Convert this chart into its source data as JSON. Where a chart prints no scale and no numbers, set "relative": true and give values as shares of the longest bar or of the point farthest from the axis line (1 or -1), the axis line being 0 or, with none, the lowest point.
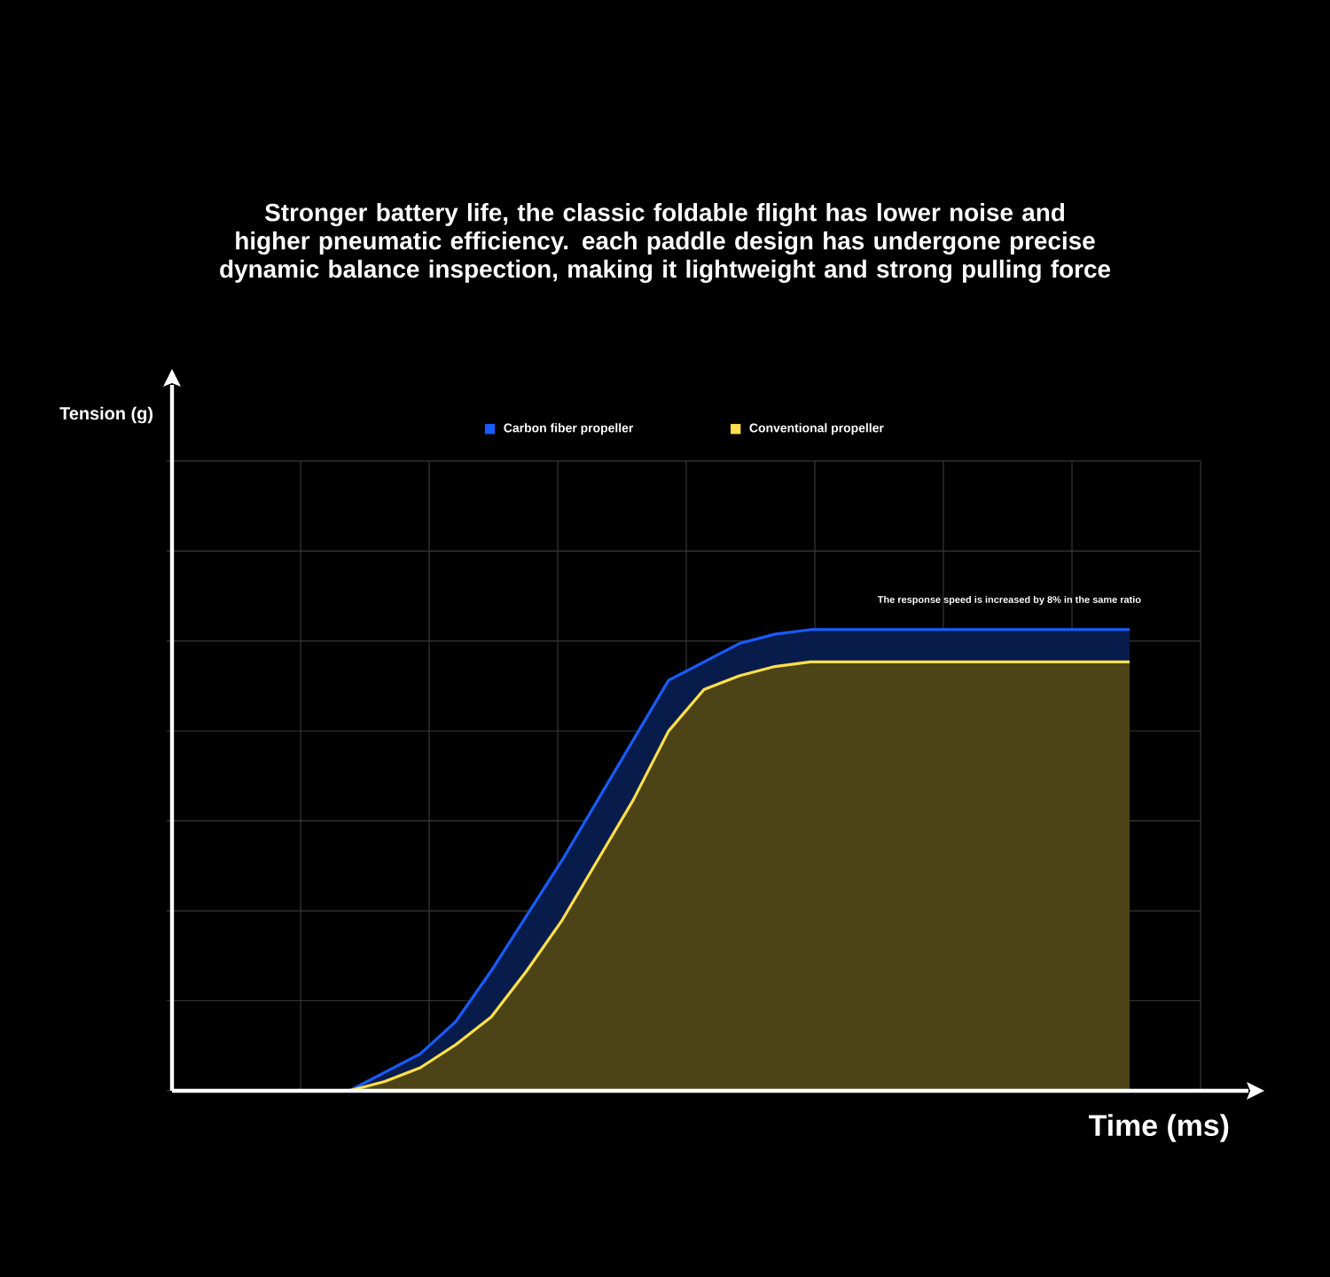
{
  "chart_data": {
    "type": "area",
    "title": "Stronger battery life, the classic foldable flight has lower noise and higher pneumatic efficiency. each paddle design has undergone precise dynamic balance inspection, making it lightweight and strong pulling force",
    "xlabel": "Time (ms)",
    "relative": true,
    "grid": true,
    "legend": "top",
    "annotations": [
      "The response speed is increased by 8% in the same ratio",
      "Tension (g)"
    ],
    "categories": [
      null,
      null,
      null,
      null,
      null,
      null,
      null,
      null,
      null,
      null,
      null,
      null,
      null,
      null,
      null,
      null,
      null,
      null,
      null,
      null,
      null,
      null,
      null,
      null,
      null,
      null,
      null,
      null,
      null,
      null
    ],
    "series": [
      {
        "name": "Carbon fiber propeller",
        "color": "#1a5cff",
        "values": [
          null,
          null,
          null,
          null,
          null,
          0,
          0.04,
          0.08,
          0.15,
          0.26,
          0.38,
          0.5,
          0.63,
          0.76,
          0.89,
          0.93,
          0.97,
          0.99,
          1,
          1,
          1,
          1,
          1,
          1,
          1,
          1,
          1,
          1,
          null,
          null
        ]
      },
      {
        "name": "Conventional propeller",
        "color": "#ffe04a",
        "values": [
          null,
          null,
          null,
          null,
          null,
          0,
          0.02,
          0.05,
          0.1,
          0.16,
          0.26,
          0.37,
          0.5,
          0.63,
          0.78,
          0.87,
          0.9,
          0.92,
          0.93,
          0.93,
          0.93,
          0.93,
          0.93,
          0.93,
          0.93,
          0.93,
          0.93,
          0.93,
          null,
          null
        ]
      }
    ]
  }
}
